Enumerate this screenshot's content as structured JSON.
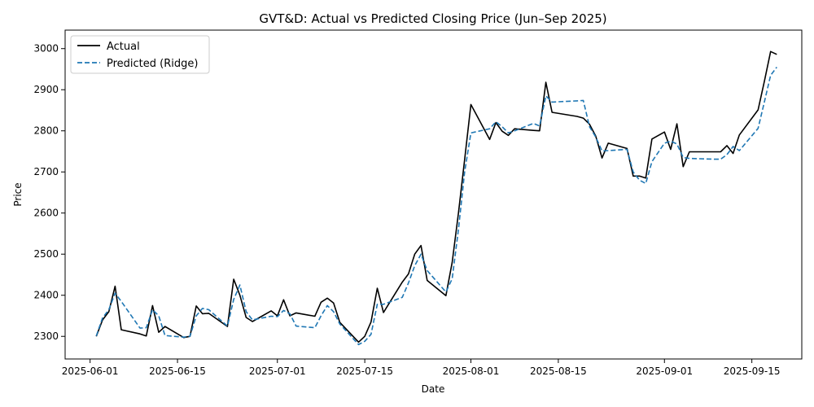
{
  "chart_data": {
    "type": "line",
    "title": "GVT&D: Actual vs Predicted Closing Price (Jun–Sep 2025)",
    "xlabel": "Date",
    "ylabel": "Price",
    "x_tick_labels": [
      "2025-06-01",
      "2025-06-15",
      "2025-07-01",
      "2025-07-15",
      "2025-08-01",
      "2025-08-15",
      "2025-09-01",
      "2025-09-15"
    ],
    "y_ticks": [
      2300,
      2400,
      2500,
      2600,
      2700,
      2800,
      2900,
      3000
    ],
    "ylim": [
      2245,
      3045
    ],
    "xlim": [
      "2025-05-28",
      "2025-09-23"
    ],
    "legend_position": "upper-left",
    "grid": false,
    "series": [
      {
        "name": "Actual",
        "color": "#000000",
        "style": "solid",
        "points": [
          [
            "2025-06-02",
            2300
          ],
          [
            "2025-06-03",
            2340
          ],
          [
            "2025-06-04",
            2360
          ],
          [
            "2025-06-05",
            2422
          ],
          [
            "2025-06-06",
            2316
          ],
          [
            "2025-06-09",
            2306
          ],
          [
            "2025-06-10",
            2301
          ],
          [
            "2025-06-11",
            2375
          ],
          [
            "2025-06-12",
            2310
          ],
          [
            "2025-06-13",
            2324
          ],
          [
            "2025-06-16",
            2297
          ],
          [
            "2025-06-17",
            2300
          ],
          [
            "2025-06-18",
            2374
          ],
          [
            "2025-06-19",
            2355
          ],
          [
            "2025-06-20",
            2356
          ],
          [
            "2025-06-23",
            2324
          ],
          [
            "2025-06-24",
            2439
          ],
          [
            "2025-06-25",
            2400
          ],
          [
            "2025-06-26",
            2346
          ],
          [
            "2025-06-27",
            2336
          ],
          [
            "2025-06-30",
            2362
          ],
          [
            "2025-07-01",
            2350
          ],
          [
            "2025-07-02",
            2389
          ],
          [
            "2025-07-03",
            2350
          ],
          [
            "2025-07-04",
            2357
          ],
          [
            "2025-07-07",
            2349
          ],
          [
            "2025-07-08",
            2383
          ],
          [
            "2025-07-09",
            2393
          ],
          [
            "2025-07-10",
            2381
          ],
          [
            "2025-07-11",
            2334
          ],
          [
            "2025-07-14",
            2286
          ],
          [
            "2025-07-15",
            2300
          ],
          [
            "2025-07-16",
            2335
          ],
          [
            "2025-07-17",
            2417
          ],
          [
            "2025-07-18",
            2358
          ],
          [
            "2025-07-21",
            2432
          ],
          [
            "2025-07-22",
            2452
          ],
          [
            "2025-07-23",
            2500
          ],
          [
            "2025-07-24",
            2521
          ],
          [
            "2025-07-25",
            2436
          ],
          [
            "2025-07-28",
            2399
          ],
          [
            "2025-07-29",
            2480
          ],
          [
            "2025-07-30",
            2600
          ],
          [
            "2025-07-31",
            2730
          ],
          [
            "2025-08-01",
            2864
          ],
          [
            "2025-08-04",
            2779
          ],
          [
            "2025-08-05",
            2820
          ],
          [
            "2025-08-06",
            2799
          ],
          [
            "2025-08-07",
            2789
          ],
          [
            "2025-08-08",
            2805
          ],
          [
            "2025-08-11",
            2801
          ],
          [
            "2025-08-12",
            2800
          ],
          [
            "2025-08-13",
            2918
          ],
          [
            "2025-08-14",
            2845
          ],
          [
            "2025-08-18",
            2835
          ],
          [
            "2025-08-19",
            2831
          ],
          [
            "2025-08-20",
            2816
          ],
          [
            "2025-08-21",
            2787
          ],
          [
            "2025-08-22",
            2734
          ],
          [
            "2025-08-23",
            2770
          ],
          [
            "2025-08-26",
            2757
          ],
          [
            "2025-08-27",
            2690
          ],
          [
            "2025-08-28",
            2690
          ],
          [
            "2025-08-29",
            2685
          ],
          [
            "2025-08-30",
            2780
          ],
          [
            "2025-09-01",
            2797
          ],
          [
            "2025-09-02",
            2755
          ],
          [
            "2025-09-03",
            2817
          ],
          [
            "2025-09-04",
            2713
          ],
          [
            "2025-09-05",
            2749
          ],
          [
            "2025-09-09",
            2749
          ],
          [
            "2025-09-10",
            2749
          ],
          [
            "2025-09-11",
            2764
          ],
          [
            "2025-09-12",
            2745
          ],
          [
            "2025-09-13",
            2790
          ],
          [
            "2025-09-16",
            2851
          ],
          [
            "2025-09-17",
            2920
          ],
          [
            "2025-09-18",
            2993
          ],
          [
            "2025-09-19",
            2986
          ]
        ]
      },
      {
        "name": "Predicted (Ridge)",
        "color": "#1f77b4",
        "style": "dashed",
        "points": [
          [
            "2025-06-02",
            2301
          ],
          [
            "2025-06-03",
            2345
          ],
          [
            "2025-06-04",
            2365
          ],
          [
            "2025-06-05",
            2405
          ],
          [
            "2025-06-06",
            2385
          ],
          [
            "2025-06-09",
            2320
          ],
          [
            "2025-06-10",
            2321
          ],
          [
            "2025-06-11",
            2365
          ],
          [
            "2025-06-12",
            2350
          ],
          [
            "2025-06-13",
            2302
          ],
          [
            "2025-06-16",
            2298
          ],
          [
            "2025-06-17",
            2300
          ],
          [
            "2025-06-18",
            2350
          ],
          [
            "2025-06-19",
            2368
          ],
          [
            "2025-06-20",
            2365
          ],
          [
            "2025-06-23",
            2325
          ],
          [
            "2025-06-24",
            2390
          ],
          [
            "2025-06-25",
            2425
          ],
          [
            "2025-06-26",
            2360
          ],
          [
            "2025-06-27",
            2340
          ],
          [
            "2025-06-30",
            2349
          ],
          [
            "2025-07-01",
            2348
          ],
          [
            "2025-07-02",
            2363
          ],
          [
            "2025-07-03",
            2355
          ],
          [
            "2025-07-04",
            2325
          ],
          [
            "2025-07-07",
            2321
          ],
          [
            "2025-07-08",
            2350
          ],
          [
            "2025-07-09",
            2375
          ],
          [
            "2025-07-10",
            2360
          ],
          [
            "2025-07-11",
            2330
          ],
          [
            "2025-07-14",
            2280
          ],
          [
            "2025-07-15",
            2288
          ],
          [
            "2025-07-16",
            2305
          ],
          [
            "2025-07-17",
            2378
          ],
          [
            "2025-07-18",
            2378
          ],
          [
            "2025-07-21",
            2395
          ],
          [
            "2025-07-22",
            2430
          ],
          [
            "2025-07-23",
            2472
          ],
          [
            "2025-07-24",
            2500
          ],
          [
            "2025-07-25",
            2460
          ],
          [
            "2025-07-28",
            2408
          ],
          [
            "2025-07-29",
            2440
          ],
          [
            "2025-07-30",
            2560
          ],
          [
            "2025-07-31",
            2700
          ],
          [
            "2025-08-01",
            2795
          ],
          [
            "2025-08-04",
            2805
          ],
          [
            "2025-08-05",
            2822
          ],
          [
            "2025-08-06",
            2810
          ],
          [
            "2025-08-07",
            2795
          ],
          [
            "2025-08-08",
            2800
          ],
          [
            "2025-08-11",
            2818
          ],
          [
            "2025-08-12",
            2812
          ],
          [
            "2025-08-13",
            2885
          ],
          [
            "2025-08-14",
            2870
          ],
          [
            "2025-08-18",
            2873
          ],
          [
            "2025-08-19",
            2874
          ],
          [
            "2025-08-20",
            2810
          ],
          [
            "2025-08-21",
            2785
          ],
          [
            "2025-08-22",
            2751
          ],
          [
            "2025-08-23",
            2752
          ],
          [
            "2025-08-26",
            2755
          ],
          [
            "2025-08-27",
            2700
          ],
          [
            "2025-08-28",
            2680
          ],
          [
            "2025-08-29",
            2672
          ],
          [
            "2025-08-30",
            2725
          ],
          [
            "2025-09-01",
            2770
          ],
          [
            "2025-09-02",
            2775
          ],
          [
            "2025-09-03",
            2768
          ],
          [
            "2025-09-04",
            2735
          ],
          [
            "2025-09-05",
            2733
          ],
          [
            "2025-09-09",
            2731
          ],
          [
            "2025-09-10",
            2731
          ],
          [
            "2025-09-11",
            2742
          ],
          [
            "2025-09-12",
            2762
          ],
          [
            "2025-09-13",
            2752
          ],
          [
            "2025-09-16",
            2806
          ],
          [
            "2025-09-17",
            2870
          ],
          [
            "2025-09-18",
            2935
          ],
          [
            "2025-09-19",
            2955
          ]
        ]
      }
    ]
  }
}
